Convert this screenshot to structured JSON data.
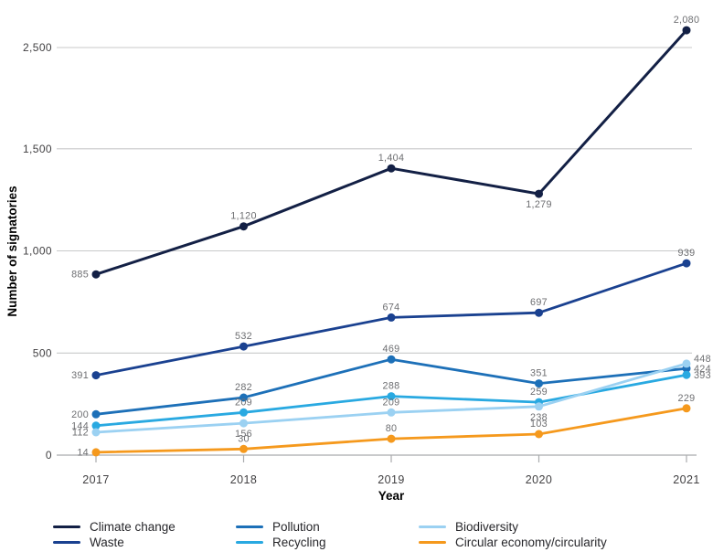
{
  "chart_data": {
    "type": "line",
    "title": "",
    "xlabel": "Year",
    "ylabel": "Number of signatories",
    "x_categories": [
      "2017",
      "2018",
      "2019",
      "2020",
      "2021"
    ],
    "y_ticks": [
      "0",
      "500",
      "1,000",
      "1,500",
      "2,500"
    ],
    "ylim": [
      0,
      2500
    ],
    "grid": "horizontal-only",
    "legend_position": "bottom",
    "axis_text_color": "#414042",
    "point_label_color": "#6d6e71",
    "gridline_color": "#c8c9ca",
    "axis_line_color": "#a9abad",
    "series": [
      {
        "name": "Climate change",
        "color": "#132045",
        "values": [
          885,
          1120,
          1404,
          1279,
          2080
        ],
        "labels": [
          "885",
          "1,120",
          "1,404",
          "1,279",
          "2,080"
        ],
        "label_pos": [
          "L",
          "A",
          "A",
          "B",
          "A"
        ]
      },
      {
        "name": "Waste",
        "color": "#1a4190",
        "values": [
          391,
          532,
          674,
          697,
          939
        ],
        "labels": [
          "391",
          "532",
          "674",
          "697",
          "939"
        ],
        "label_pos": [
          "L",
          "A",
          "A",
          "A",
          "A"
        ]
      },
      {
        "name": "Pollution",
        "color": "#1d70b8",
        "values": [
          200,
          282,
          469,
          351,
          424
        ],
        "labels": [
          "200",
          "282",
          "469",
          "351",
          "424"
        ],
        "label_pos": [
          "L",
          "A",
          "A",
          "A",
          "R"
        ]
      },
      {
        "name": "Recycling",
        "color": "#29a9e1",
        "values": [
          144,
          209,
          288,
          259,
          393
        ],
        "labels": [
          "144",
          "209",
          "288",
          "259",
          "393"
        ],
        "label_pos": [
          "L",
          "A",
          "A",
          "A",
          "R"
        ]
      },
      {
        "name": "Biodiversity",
        "color": "#9bd1f2",
        "values": [
          112,
          156,
          209,
          238,
          448
        ],
        "labels": [
          "112",
          "156",
          "209",
          "238",
          "448"
        ],
        "label_pos": [
          "L",
          "B",
          "A",
          "B",
          "R"
        ],
        "label_off": {
          "4": [
            0,
            -6
          ]
        }
      },
      {
        "name": "Circular economy/circularity",
        "color": "#f5991d",
        "values": [
          14,
          30,
          80,
          103,
          229
        ],
        "labels": [
          "14",
          "30",
          "80",
          "103",
          "229"
        ],
        "label_pos": [
          "L",
          "A",
          "A",
          "A",
          "A"
        ]
      }
    ]
  }
}
